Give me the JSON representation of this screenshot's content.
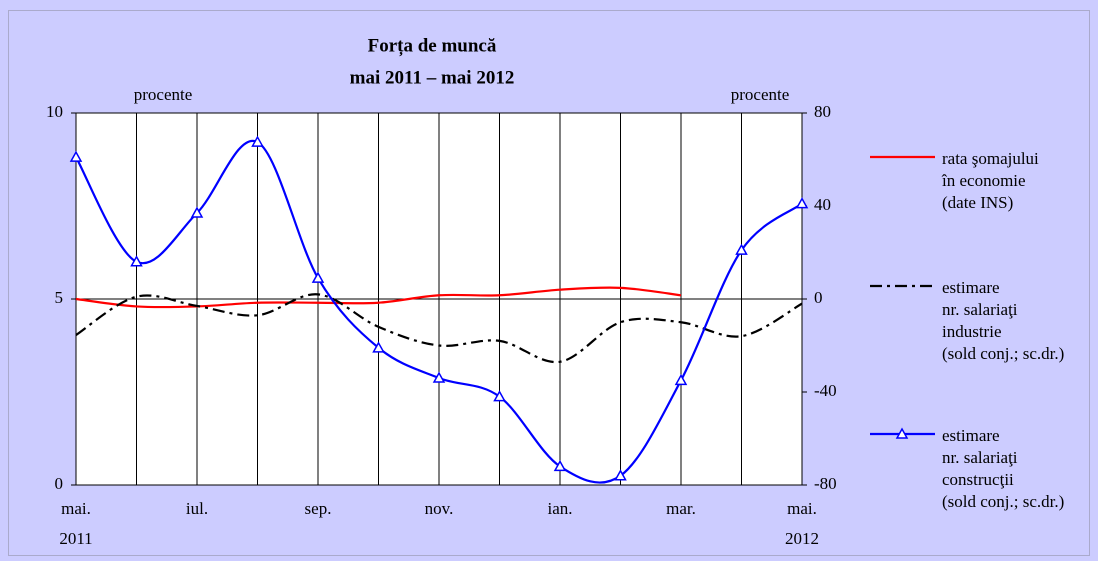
{
  "chart_data": {
    "type": "line",
    "title": [
      "Forța de muncă",
      "mai 2011 – mai 2012"
    ],
    "ylabel": "procente",
    "y2label": "procente",
    "categories": [
      "mai.",
      null,
      "iul.",
      null,
      "sep.",
      null,
      "nov.",
      null,
      "ian.",
      null,
      "mar.",
      null,
      "mai."
    ],
    "years": [
      "2011",
      "2012"
    ],
    "ylim": [
      0,
      10
    ],
    "yticks": [
      0,
      5,
      10
    ],
    "y2lim": [
      -80,
      80
    ],
    "y2ticks": [
      -80,
      -40,
      0,
      40,
      80
    ],
    "grid": true,
    "legend": "right",
    "series": [
      {
        "name": [
          "rata şomajului",
          "în economie",
          "(date INS)"
        ],
        "color": "#ff0000",
        "style": "solid",
        "marker": null,
        "values": [
          5.0,
          4.8,
          4.8,
          4.9,
          4.9,
          4.9,
          5.1,
          5.1,
          5.25,
          5.3,
          5.1,
          null,
          null
        ]
      },
      {
        "name": [
          "estimare",
          "nr. salariaţi",
          "industrie",
          "(sold conj.; sc.dr.)"
        ],
        "color": "#000000",
        "style": "dashdot",
        "marker": null,
        "axis": "y2",
        "values": [
          -15.5,
          1,
          -3,
          -7,
          2,
          -12,
          -20,
          -18,
          -27,
          -10,
          -10,
          -16,
          -2
        ]
      },
      {
        "name": [
          "estimare",
          "nr. salariaţi",
          "construcţii",
          "(sold conj.; sc.dr.)"
        ],
        "color": "#0000ff",
        "style": "solid",
        "marker": "triangle",
        "axis": "y2",
        "values": [
          61,
          16,
          37,
          67.5,
          9,
          -21,
          -34,
          -42,
          -72,
          -76,
          -35,
          21,
          41
        ]
      }
    ]
  }
}
